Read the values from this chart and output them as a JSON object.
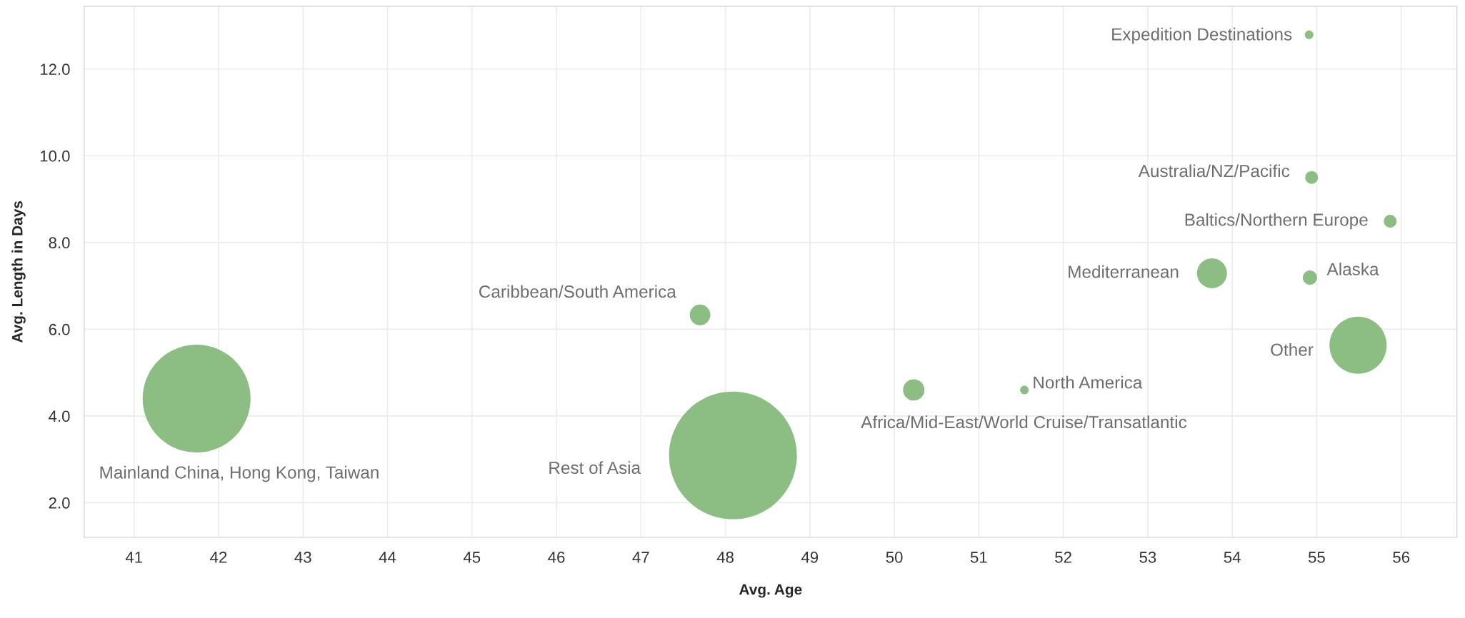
{
  "chart_data": {
    "type": "bubble",
    "xlabel": "Avg. Age",
    "ylabel": "Avg. Length in Days",
    "xlim": [
      40.41,
      56.66
    ],
    "ylim": [
      1.2,
      13.45
    ],
    "xticks": [
      41,
      42,
      43,
      44,
      45,
      46,
      47,
      48,
      49,
      50,
      51,
      52,
      53,
      54,
      55,
      56
    ],
    "yticks": [
      {
        "value": 2,
        "label": "2.0"
      },
      {
        "value": 4,
        "label": "4.0"
      },
      {
        "value": 6,
        "label": "6.0"
      },
      {
        "value": 8,
        "label": "8.0"
      },
      {
        "value": 10,
        "label": "10.0"
      },
      {
        "value": 12,
        "label": "12.0"
      }
    ],
    "grid": true,
    "series": [
      {
        "color": "#8cbd82",
        "x": [
          41.74,
          47.7,
          48.09,
          50.23,
          51.54,
          54.91,
          54.94,
          55.87,
          53.76,
          54.92,
          55.49
        ],
        "values": [
          4.4,
          6.33,
          3.09,
          4.6,
          4.6,
          12.79,
          9.5,
          8.49,
          7.29,
          7.19,
          5.63
        ],
        "sizes": [
          0.713,
          0.026,
          1,
          0.028,
          0.0045,
          0.0045,
          0.01,
          0.01,
          0.055,
          0.0125,
          0.2
        ]
      }
    ],
    "annotations": [
      "Mainland China, Hong Kong, Taiwan",
      {
        "text": "Caribbean/South America",
        "x": 47.7,
        "y": 6.33
      },
      "Rest of Asia",
      {
        "text": "Africa/Mid-East/World Cruise/Transatlantic",
        "x": 50.23,
        "y": 4.6
      },
      {
        "text": "North America",
        "x": 51.54,
        "y": 4.6
      },
      {
        "text": "Expedition Destinations",
        "x": 54.91,
        "y": 12.79
      },
      {
        "text": "Australia/NZ/Pacific",
        "x": 54.94,
        "y": 9.5
      },
      {
        "text": "Baltics/Northern Europe",
        "x": 55.87,
        "y": 8.49
      },
      {
        "text": "Mediterranean",
        "x": 53.76,
        "y": 7.29
      },
      {
        "text": "Alaska",
        "x": 54.92,
        "y": 7.19
      },
      {
        "text": "Other",
        "x": 55.49,
        "y": 5.63
      }
    ]
  }
}
